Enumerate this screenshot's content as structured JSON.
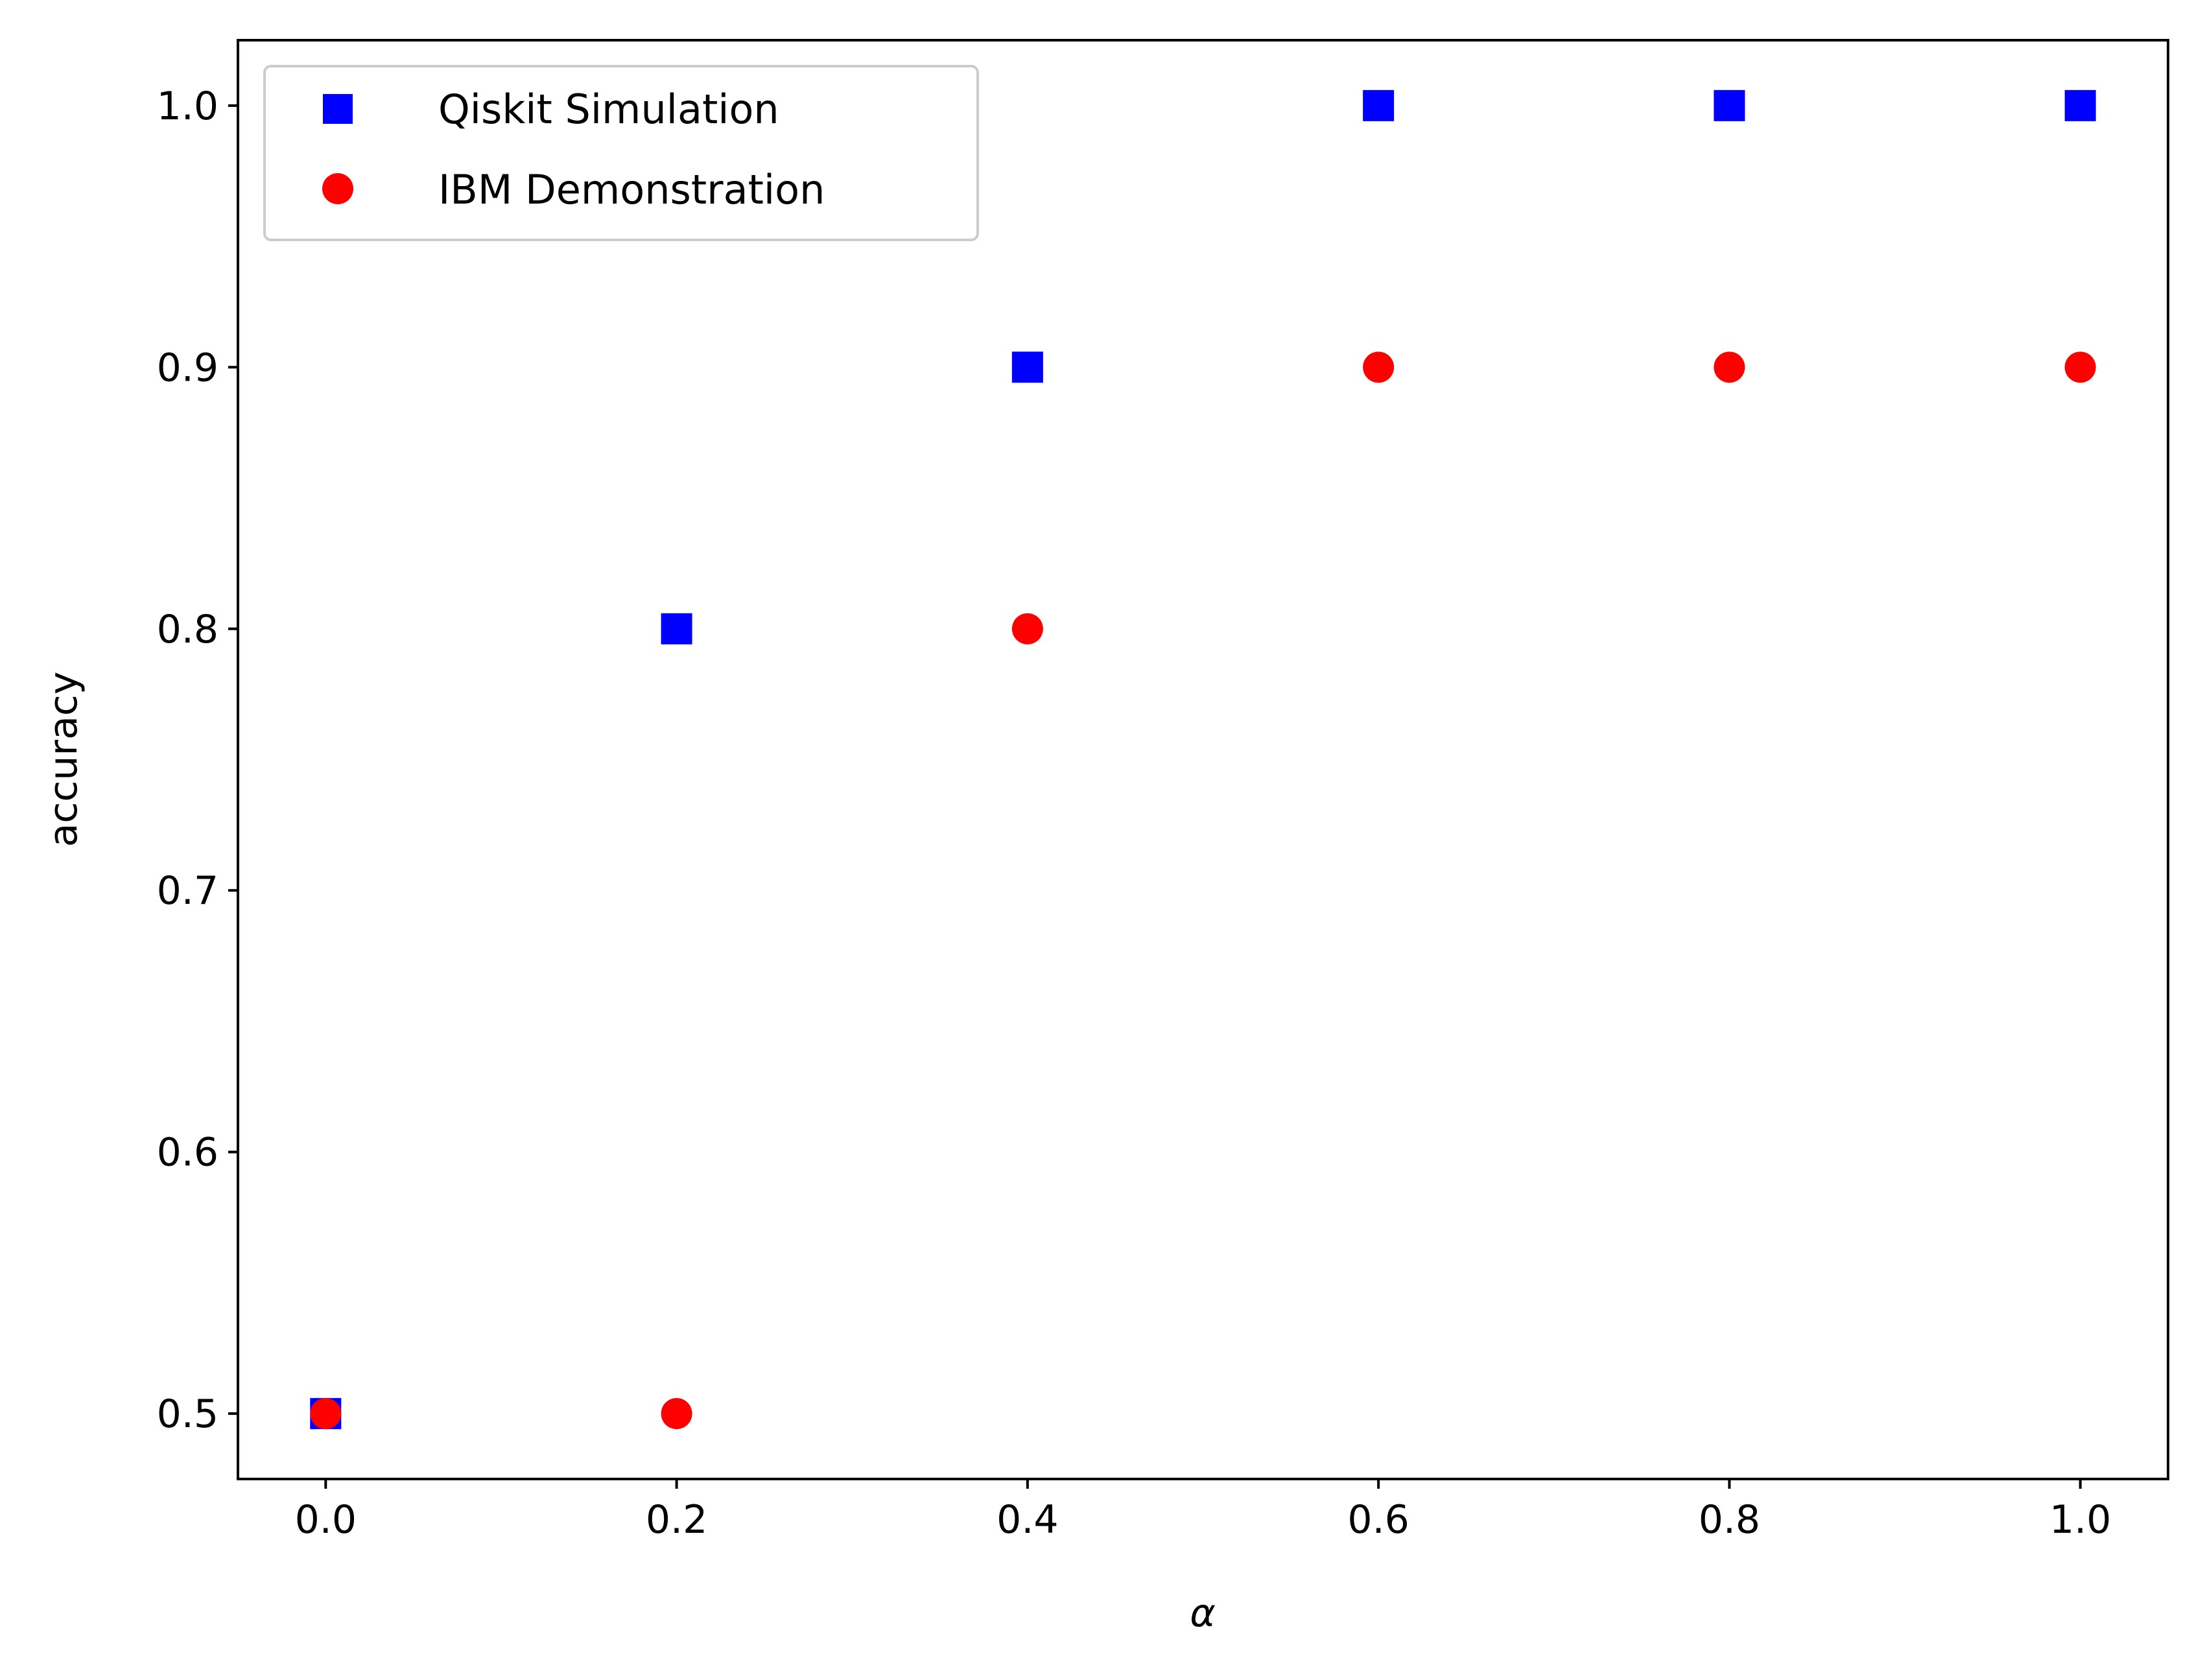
{
  "chart_data": {
    "type": "scatter",
    "xlabel": "α",
    "ylabel": "accuracy",
    "xlim": [
      -0.05,
      1.05
    ],
    "ylim": [
      0.475,
      1.025
    ],
    "grid": false,
    "legend_position": "upper-left",
    "xticks": [
      {
        "value": 0.0,
        "label": "0.0"
      },
      {
        "value": 0.2,
        "label": "0.2"
      },
      {
        "value": 0.4,
        "label": "0.4"
      },
      {
        "value": 0.6,
        "label": "0.6"
      },
      {
        "value": 0.8,
        "label": "0.8"
      },
      {
        "value": 1.0,
        "label": "1.0"
      }
    ],
    "yticks": [
      {
        "value": 0.5,
        "label": "0.5"
      },
      {
        "value": 0.6,
        "label": "0.6"
      },
      {
        "value": 0.7,
        "label": "0.7"
      },
      {
        "value": 0.8,
        "label": "0.8"
      },
      {
        "value": 0.9,
        "label": "0.9"
      },
      {
        "value": 1.0,
        "label": "1.0"
      }
    ],
    "series": [
      {
        "name": "Qiskit Simulation",
        "marker": "square",
        "color": "#0000ff",
        "x": [
          0.0,
          0.2,
          0.4,
          0.6,
          0.8,
          1.0
        ],
        "y": [
          0.5,
          0.8,
          0.9,
          1.0,
          1.0,
          1.0
        ]
      },
      {
        "name": "IBM Demonstration",
        "marker": "circle",
        "color": "#ff0000",
        "x": [
          0.0,
          0.2,
          0.4,
          0.6,
          0.8,
          1.0
        ],
        "y": [
          0.5,
          0.5,
          0.8,
          0.9,
          0.9,
          0.9
        ]
      }
    ]
  }
}
